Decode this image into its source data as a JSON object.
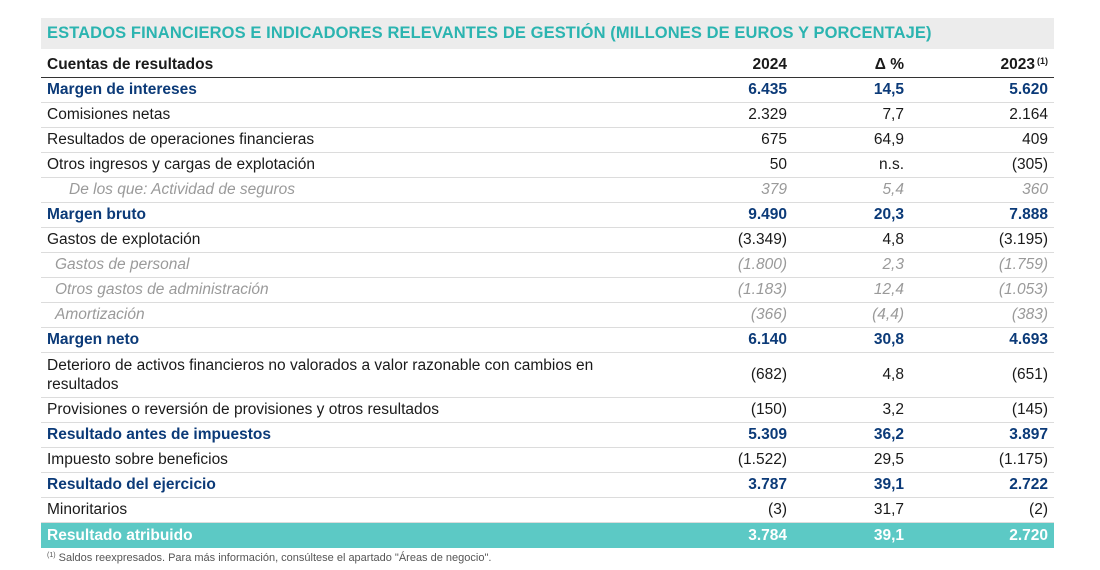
{
  "title": "ESTADOS FINANCIEROS E INDICADORES RELEVANTES DE GESTIÓN (MILLONES DE EUROS Y PORCENTAJE)",
  "header": {
    "label": "Cuentas de resultados",
    "y2024": "2024",
    "delta": "Δ %",
    "y2023": "2023",
    "footnote_mark": "(1)"
  },
  "rows": [
    {
      "label": "Margen de intereses",
      "v2024": "6.435",
      "delta": "14,5",
      "v2023": "5.620"
    },
    {
      "label": "Comisiones netas",
      "v2024": "2.329",
      "delta": "7,7",
      "v2023": "2.164"
    },
    {
      "label": "Resultados de operaciones financieras",
      "v2024": "675",
      "delta": "64,9",
      "v2023": "409"
    },
    {
      "label": "Otros ingresos y cargas de explotación",
      "v2024": "50",
      "delta": "n.s.",
      "v2023": "(305)"
    },
    {
      "label": "De los que: Actividad de seguros",
      "v2024": "379",
      "delta": "5,4",
      "v2023": "360"
    },
    {
      "label": "Margen bruto",
      "v2024": "9.490",
      "delta": "20,3",
      "v2023": "7.888"
    },
    {
      "label": "Gastos de explotación",
      "v2024": "(3.349)",
      "delta": "4,8",
      "v2023": "(3.195)"
    },
    {
      "label": "Gastos de personal",
      "v2024": "(1.800)",
      "delta": "2,3",
      "v2023": "(1.759)"
    },
    {
      "label": "Otros gastos de administración",
      "v2024": "(1.183)",
      "delta": "12,4",
      "v2023": "(1.053)"
    },
    {
      "label": "Amortización",
      "v2024": "(366)",
      "delta": "(4,4)",
      "v2023": "(383)"
    },
    {
      "label": "Margen neto",
      "v2024": "6.140",
      "delta": "30,8",
      "v2023": "4.693"
    },
    {
      "label": "Deterioro de activos financieros no valorados a valor razonable con cambios en resultados",
      "v2024": "(682)",
      "delta": "4,8",
      "v2023": "(651)"
    },
    {
      "label": "Provisiones o reversión de provisiones y otros resultados",
      "v2024": "(150)",
      "delta": "3,2",
      "v2023": "(145)"
    },
    {
      "label": "Resultado antes de impuestos",
      "v2024": "5.309",
      "delta": "36,2",
      "v2023": "3.897"
    },
    {
      "label": "Impuesto sobre beneficios",
      "v2024": "(1.522)",
      "delta": "29,5",
      "v2023": "(1.175)"
    },
    {
      "label": "Resultado del ejercicio",
      "v2024": "3.787",
      "delta": "39,1",
      "v2023": "2.722"
    },
    {
      "label": "Minoritarios",
      "v2024": "(3)",
      "delta": "31,7",
      "v2023": "(2)"
    },
    {
      "label": "Resultado atribuido",
      "v2024": "3.784",
      "delta": "39,1",
      "v2023": "2.720"
    }
  ],
  "footnote": {
    "mark": "(1)",
    "text": "Saldos reexpresados. Para más información, consúltese el apartado \"Áreas de negocio\"."
  },
  "colors": {
    "title": "#2bb4b0",
    "highlight_row": "#5cc9c5",
    "bold_text": "#0b3a78"
  }
}
